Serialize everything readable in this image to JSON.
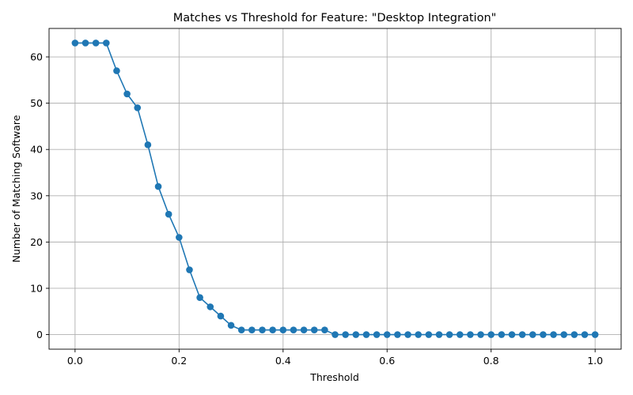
{
  "chart_data": {
    "type": "line",
    "title": "Matches vs Threshold for Feature: \"Desktop Integration\"",
    "xlabel": "Threshold",
    "ylabel": "Number of Matching Software",
    "xlim": [
      -0.05,
      1.05
    ],
    "ylim": [
      -3.15,
      66.15
    ],
    "xticks": [
      0.0,
      0.2,
      0.4,
      0.6,
      0.8,
      1.0
    ],
    "xtick_labels": [
      "0.0",
      "0.2",
      "0.4",
      "0.6",
      "0.8",
      "1.0"
    ],
    "yticks": [
      0,
      10,
      20,
      30,
      40,
      50,
      60
    ],
    "ytick_labels": [
      "0",
      "10",
      "20",
      "30",
      "40",
      "50",
      "60"
    ],
    "grid": true,
    "color": "#1f77b4",
    "marker": "circle",
    "series": [
      {
        "x": [
          0.0,
          0.02,
          0.04,
          0.06,
          0.08,
          0.1,
          0.12,
          0.14,
          0.16,
          0.18,
          0.2,
          0.22,
          0.24,
          0.26,
          0.28,
          0.3,
          0.32,
          0.34,
          0.36,
          0.38,
          0.4,
          0.42,
          0.44,
          0.46,
          0.48,
          0.5,
          0.52,
          0.54,
          0.56,
          0.58,
          0.6,
          0.62,
          0.64,
          0.66,
          0.68,
          0.7,
          0.72,
          0.74,
          0.76,
          0.78,
          0.8,
          0.82,
          0.84,
          0.86,
          0.88,
          0.9,
          0.92,
          0.94,
          0.96,
          0.98,
          1.0
        ],
        "y": [
          63,
          63,
          63,
          63,
          57,
          52,
          49,
          41,
          32,
          26,
          21,
          14,
          8,
          6,
          4,
          2,
          1,
          1,
          1,
          1,
          1,
          1,
          1,
          1,
          1,
          0,
          0,
          0,
          0,
          0,
          0,
          0,
          0,
          0,
          0,
          0,
          0,
          0,
          0,
          0,
          0,
          0,
          0,
          0,
          0,
          0,
          0,
          0,
          0,
          0,
          0
        ]
      }
    ]
  }
}
